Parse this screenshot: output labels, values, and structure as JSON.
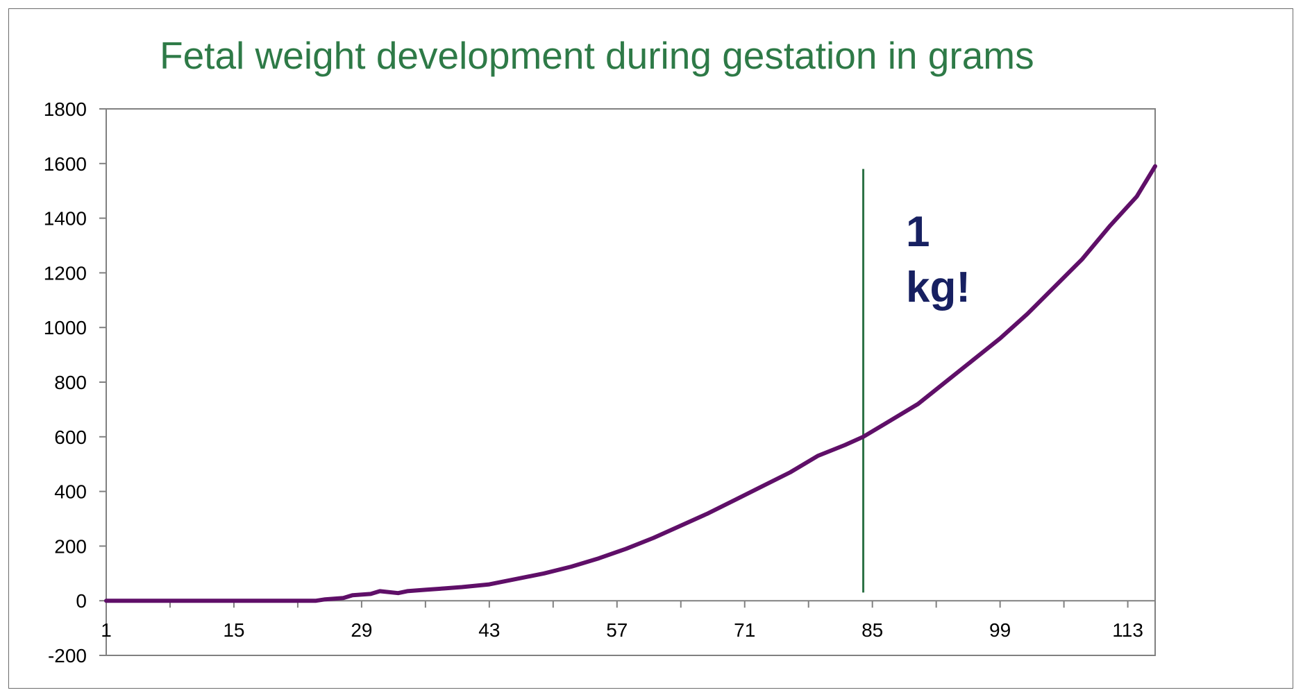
{
  "chart_data": {
    "type": "line",
    "title": "Fetal weight development during gestation in grams",
    "xlabel": "",
    "ylabel": "",
    "x_range": [
      1,
      116
    ],
    "x_ticks": [
      1,
      15,
      29,
      43,
      57,
      71,
      85,
      99,
      113
    ],
    "ylim": [
      -200,
      1800
    ],
    "y_ticks": [
      -200,
      0,
      200,
      400,
      600,
      800,
      1000,
      1200,
      1400,
      1600,
      1800
    ],
    "y_tick_labels": [
      "-200",
      "0",
      "200",
      "400",
      "600",
      "800",
      "1000",
      "1200",
      "1400",
      "1600",
      "1800"
    ],
    "grid": false,
    "legend": "none",
    "series": [
      {
        "color": "#5f0f68",
        "x": [
          1,
          10,
          20,
          24,
          25,
          27,
          28,
          30,
          31,
          33,
          34,
          36,
          38,
          40,
          43,
          46,
          49,
          52,
          55,
          58,
          61,
          64,
          67,
          70,
          73,
          76,
          79,
          82,
          84,
          87,
          90,
          93,
          96,
          99,
          102,
          105,
          108,
          111,
          114,
          116
        ],
        "y": [
          0,
          0,
          0,
          0,
          5,
          10,
          20,
          25,
          35,
          28,
          35,
          40,
          45,
          50,
          60,
          80,
          100,
          125,
          155,
          190,
          230,
          275,
          320,
          370,
          420,
          470,
          530,
          570,
          600,
          660,
          720,
          800,
          880,
          960,
          1050,
          1150,
          1250,
          1370,
          1480,
          1590
        ]
      }
    ],
    "marker_line": {
      "x": 84,
      "y_from": 30,
      "y_to": 1580,
      "color": "#2d7245"
    },
    "annotation": {
      "lines": [
        "1",
        "kg!"
      ],
      "color": "#172061"
    }
  }
}
